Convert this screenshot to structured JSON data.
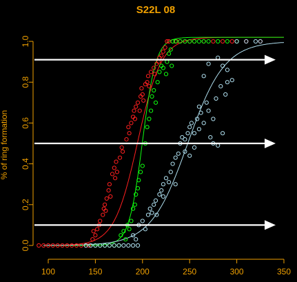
{
  "chart_data": {
    "type": "scatter",
    "title": "S22L 08",
    "xlabel": "",
    "ylabel": "% of ring formation",
    "xlim": [
      90,
      350
    ],
    "ylim": [
      0,
      1
    ],
    "xticks": [
      100,
      150,
      200,
      250,
      300,
      350
    ],
    "yticks": [
      0.0,
      0.2,
      0.4,
      0.6,
      0.8,
      1.0
    ],
    "grid": false,
    "series": [
      {
        "color": "#ff2020",
        "marker": "circle",
        "curve": {
          "midpoint": 195,
          "scale": 12.5,
          "upper": 1.02
        },
        "points": [
          [
            90,
            0
          ],
          [
            95,
            0
          ],
          [
            100,
            0
          ],
          [
            105,
            0
          ],
          [
            110,
            0
          ],
          [
            115,
            0
          ],
          [
            120,
            0
          ],
          [
            125,
            0
          ],
          [
            130,
            0
          ],
          [
            135,
            0
          ],
          [
            140,
            0
          ],
          [
            143,
            0
          ],
          [
            147,
            0.03
          ],
          [
            148,
            0.07
          ],
          [
            150,
            0.05
          ],
          [
            152,
            0.08
          ],
          [
            154,
            0.1
          ],
          [
            155,
            0.12
          ],
          [
            158,
            0.15
          ],
          [
            159,
            0.18
          ],
          [
            160,
            0.2
          ],
          [
            161,
            0.17
          ],
          [
            162,
            0.23
          ],
          [
            164,
            0.27
          ],
          [
            165,
            0.3
          ],
          [
            166,
            0.24
          ],
          [
            168,
            0.35
          ],
          [
            170,
            0.38
          ],
          [
            171,
            0.33
          ],
          [
            172,
            0.41
          ],
          [
            173,
            0.36
          ],
          [
            176,
            0.43
          ],
          [
            178,
            0.48
          ],
          [
            179,
            0.46
          ],
          [
            183,
            0.52
          ],
          [
            185,
            0.58
          ],
          [
            186,
            0.55
          ],
          [
            188,
            0.6
          ],
          [
            190,
            0.63
          ],
          [
            191,
            0.66
          ],
          [
            192,
            0.62
          ],
          [
            193,
            0.68
          ],
          [
            195,
            0.7
          ],
          [
            197,
            0.66
          ],
          [
            198,
            0.73
          ],
          [
            199,
            0.77
          ],
          [
            200,
            0.74
          ],
          [
            201,
            0.71
          ],
          [
            203,
            0.79
          ],
          [
            205,
            0.8
          ],
          [
            206,
            0.83
          ],
          [
            207,
            0.78
          ],
          [
            209,
            0.85
          ],
          [
            212,
            0.87
          ],
          [
            213,
            0.84
          ],
          [
            215,
            0.89
          ],
          [
            217,
            0.9
          ],
          [
            218,
            0.92
          ],
          [
            220,
            0.93
          ],
          [
            222,
            0.95
          ],
          [
            224,
            0.97
          ],
          [
            226,
            1.0
          ],
          [
            228,
            1.0
          ],
          [
            232,
            1.0
          ],
          [
            236,
            1.0
          ],
          [
            240,
            1.0
          ],
          [
            245,
            1.0
          ],
          [
            250,
            1.0
          ],
          [
            255,
            1.0
          ],
          [
            265,
            1.0
          ],
          [
            275,
            1.0
          ],
          [
            285,
            1.0
          ],
          [
            295,
            1.0
          ],
          [
            310,
            1.0
          ],
          [
            325,
            1.0
          ]
        ]
      },
      {
        "color": "#10ff10",
        "marker": "circle",
        "curve": {
          "midpoint": 200,
          "scale": 7.2,
          "upper": 1.02
        },
        "points": [
          [
            150,
            0
          ],
          [
            155,
            0
          ],
          [
            160,
            0
          ],
          [
            165,
            0
          ],
          [
            170,
            0
          ],
          [
            175,
            0
          ],
          [
            177,
            0.05
          ],
          [
            180,
            0.07
          ],
          [
            182,
            0.03
          ],
          [
            184,
            0.1
          ],
          [
            186,
            0.08
          ],
          [
            188,
            0.12
          ],
          [
            190,
            0.18
          ],
          [
            192,
            0.2
          ],
          [
            193,
            0.25
          ],
          [
            195,
            0.28
          ],
          [
            196,
            0.32
          ],
          [
            198,
            0.36
          ],
          [
            200,
            0.39
          ],
          [
            203,
            0.5
          ],
          [
            205,
            0.58
          ],
          [
            207,
            0.62
          ],
          [
            209,
            0.66
          ],
          [
            210,
            0.73
          ],
          [
            212,
            0.76
          ],
          [
            214,
            0.7
          ],
          [
            216,
            0.8
          ],
          [
            218,
            0.85
          ],
          [
            220,
            0.88
          ],
          [
            222,
            0.87
          ],
          [
            225,
            0.84
          ],
          [
            226,
            0.9
          ],
          [
            228,
            0.94
          ],
          [
            230,
            0.96
          ],
          [
            231,
            0.88
          ],
          [
            232,
            1.0
          ],
          [
            235,
            1.0
          ],
          [
            240,
            1.0
          ],
          [
            245,
            1.0
          ],
          [
            250,
            1.0
          ],
          [
            255,
            1.0
          ],
          [
            260,
            1.0
          ],
          [
            265,
            1.0
          ],
          [
            270,
            1.0
          ],
          [
            280,
            1.0
          ],
          [
            290,
            1.0
          ],
          [
            300,
            1.0
          ]
        ]
      },
      {
        "color": "#b0e0f0",
        "marker": "circle",
        "curve": {
          "midpoint": 248,
          "scale": 19.5,
          "upper": 1.0
        },
        "points": [
          [
            140,
            0
          ],
          [
            145,
            0
          ],
          [
            150,
            0
          ],
          [
            155,
            0
          ],
          [
            160,
            0
          ],
          [
            165,
            0
          ],
          [
            170,
            0
          ],
          [
            175,
            0
          ],
          [
            180,
            0
          ],
          [
            185,
            0
          ],
          [
            190,
            0
          ],
          [
            195,
            0
          ],
          [
            190,
            0.05
          ],
          [
            193,
            0.03
          ],
          [
            196,
            0.1
          ],
          [
            200,
            0.12
          ],
          [
            203,
            0.08
          ],
          [
            206,
            0.15
          ],
          [
            208,
            0.18
          ],
          [
            210,
            0.16
          ],
          [
            212,
            0.2
          ],
          [
            214,
            0.22
          ],
          [
            215,
            0.15
          ],
          [
            218,
            0.25
          ],
          [
            220,
            0.27
          ],
          [
            222,
            0.3
          ],
          [
            225,
            0.33
          ],
          [
            230,
            0.36
          ],
          [
            232,
            0.4
          ],
          [
            235,
            0.43
          ],
          [
            238,
            0.45
          ],
          [
            240,
            0.5
          ],
          [
            242,
            0.53
          ],
          [
            245,
            0.46
          ],
          [
            248,
            0.55
          ],
          [
            250,
            0.58
          ],
          [
            252,
            0.6
          ],
          [
            255,
            0.55
          ],
          [
            258,
            0.62
          ],
          [
            260,
            0.57
          ],
          [
            262,
            0.65
          ],
          [
            265,
            0.6
          ],
          [
            268,
            0.7
          ],
          [
            270,
            0.66
          ],
          [
            272,
            0.53
          ],
          [
            275,
            0.5
          ],
          [
            278,
            0.72
          ],
          [
            280,
            0.49
          ],
          [
            283,
            0.78
          ],
          [
            285,
            0.55
          ],
          [
            288,
            0.74
          ],
          [
            290,
            0.8
          ],
          [
            245,
            0.52
          ],
          [
            250,
            0.44
          ],
          [
            255,
            0.48
          ],
          [
            235,
            0.3
          ],
          [
            228,
            0.31
          ],
          [
            222,
            0.24
          ],
          [
            260,
            0.68
          ],
          [
            265,
            0.83
          ],
          [
            270,
            0.89
          ],
          [
            275,
            0.62
          ],
          [
            280,
            0.92
          ],
          [
            285,
            0.88
          ],
          [
            290,
            0.86
          ],
          [
            295,
            0.81
          ],
          [
            300,
            1.0
          ],
          [
            310,
            1.0
          ],
          [
            320,
            1.0
          ],
          [
            325,
            1.0
          ]
        ]
      }
    ],
    "arrows": [
      {
        "y": 0.91
      },
      {
        "y": 0.5
      },
      {
        "y": 0.1
      }
    ]
  }
}
